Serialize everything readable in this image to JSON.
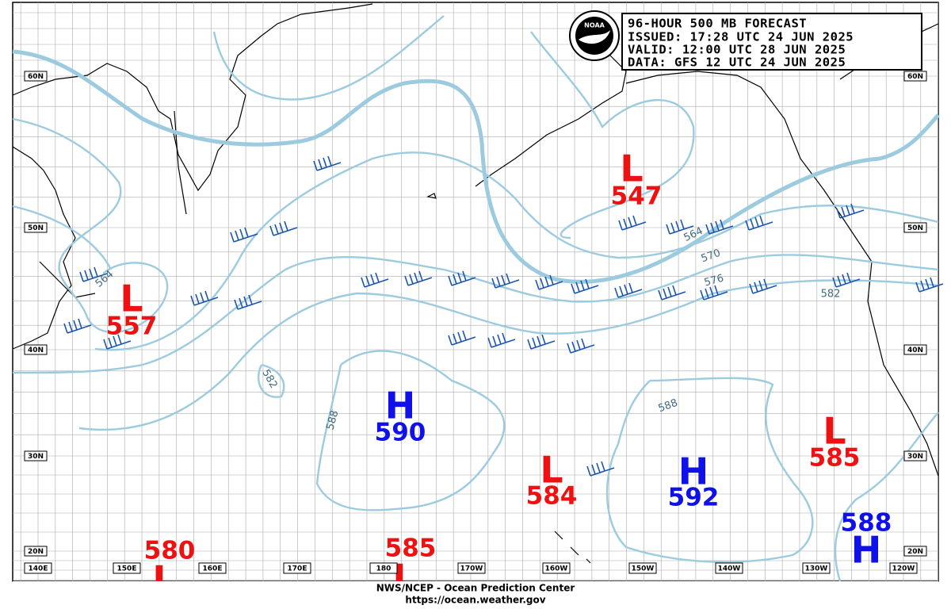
{
  "header": {
    "title": "96-HOUR 500 MB FORECAST",
    "issued": "ISSUED: 17:28 UTC 24 JUN 2025",
    "valid": "VALID:  12:00 UTC 28 JUN 2025",
    "data": "DATA:  GFS 12 UTC 24 JUN 2025",
    "logo": "NOAA"
  },
  "centers": [
    {
      "symbol": "L",
      "value": 547
    },
    {
      "symbol": "L",
      "value": 557
    },
    {
      "symbol": "H",
      "value": 590
    },
    {
      "symbol": "L",
      "value": 584
    },
    {
      "symbol": "H",
      "value": 592
    },
    {
      "symbol": "L",
      "value": 585
    },
    {
      "symbol": "H",
      "value": 588
    },
    {
      "symbol": "L",
      "value": 580
    },
    {
      "symbol": "L",
      "value": 585
    }
  ],
  "contour_labels": [
    564,
    564,
    570,
    576,
    582,
    582,
    588,
    588
  ],
  "lat_labels": [
    "60N",
    "50N",
    "40N",
    "30N",
    "20N"
  ],
  "lon_labels": [
    "140E",
    "150E",
    "160E",
    "170E",
    "180",
    "170W",
    "160W",
    "150W",
    "140W",
    "130W",
    "120W"
  ],
  "footer": {
    "line1": "NWS/NCEP - Ocean Prediction Center",
    "line2": "https://ocean.weather.gov"
  }
}
